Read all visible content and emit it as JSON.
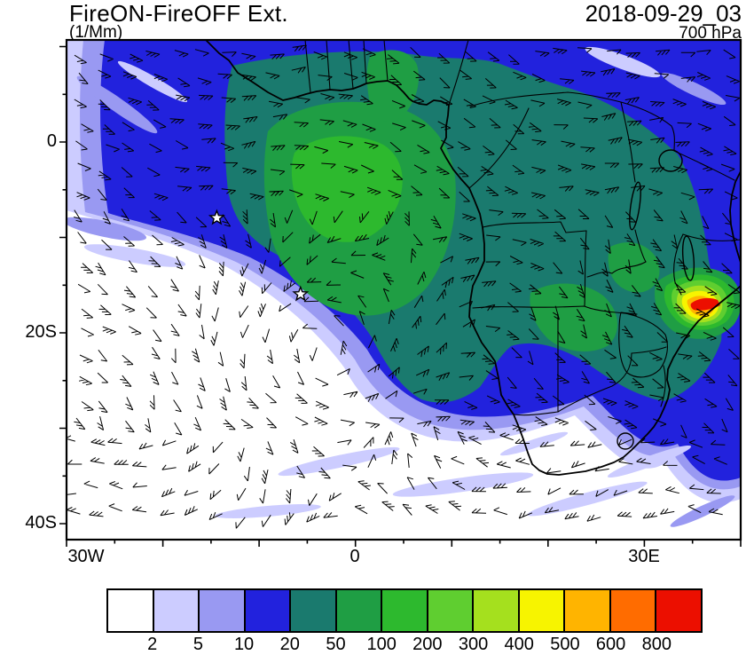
{
  "header": {
    "title": "FireON-FireOFF Ext.",
    "units_label": "(1/Mm)",
    "datetime_label": "2018-09-29_03",
    "level_label": "700 hPa"
  },
  "axes": {
    "y_tick_labels": [
      "0",
      "20S",
      "40S"
    ],
    "x_tick_labels": [
      "30W",
      "0",
      "30E"
    ]
  },
  "chart_data": {
    "type": "heatmap",
    "title": "FireON-FireOFF Ext.",
    "units": "1/Mm",
    "valid_time": "2018-09-29_03",
    "pressure_level": "700 hPa",
    "projection": "latitude-longitude map of southern Africa and the South Atlantic",
    "lon_range": [
      "30W",
      "40E"
    ],
    "lat_range": [
      "42S",
      "11N"
    ],
    "x_tick_labels": [
      "30W",
      "0",
      "30E"
    ],
    "y_tick_labels": [
      "0",
      "20S",
      "40S"
    ],
    "grid": false,
    "colorbar": {
      "position": "bottom",
      "levels": [
        2,
        5,
        10,
        20,
        50,
        100,
        200,
        300,
        400,
        500,
        600,
        800
      ],
      "colors": [
        "#ffffff",
        "#ccccff",
        "#9999f2",
        "#2222dd",
        "#1a7a6e",
        "#1f9e44",
        "#2db92e",
        "#5fce30",
        "#a5e01e",
        "#f7f400",
        "#ffb400",
        "#ff6c00",
        "#ec0f00"
      ]
    },
    "overlays": [
      "wind barbs at 700 hPa",
      "coastlines, country borders and lakes",
      "two star station markers"
    ],
    "markers": [
      {
        "symbol": "star",
        "lon": -14.4,
        "lat": -7.95
      },
      {
        "symbol": "star",
        "lon": -5.7,
        "lat": -15.95
      }
    ],
    "notable_features": [
      {
        "feature": "broad aerosol extinction plume",
        "extent": "equatorial Africa extending west over the southeastern Atlantic, about 5N to 20S",
        "value_range_1_per_Mm": "10-200"
      },
      {
        "feature": "extinction core over ocean off Gabon/Angola and over Congo basin",
        "value_range_1_per_Mm": "50-200"
      },
      {
        "feature": "maximum hotspot",
        "location": "about 33-36E, 15-17S near the Mozambique/Zimbabwe coast",
        "value_range_1_per_Mm": "300 to more than 800"
      },
      {
        "feature": "clean air",
        "extent": "South Atlantic south of about 20S and interior southern Africa south of about 27S",
        "value_range_1_per_Mm": "less than 2"
      }
    ]
  }
}
